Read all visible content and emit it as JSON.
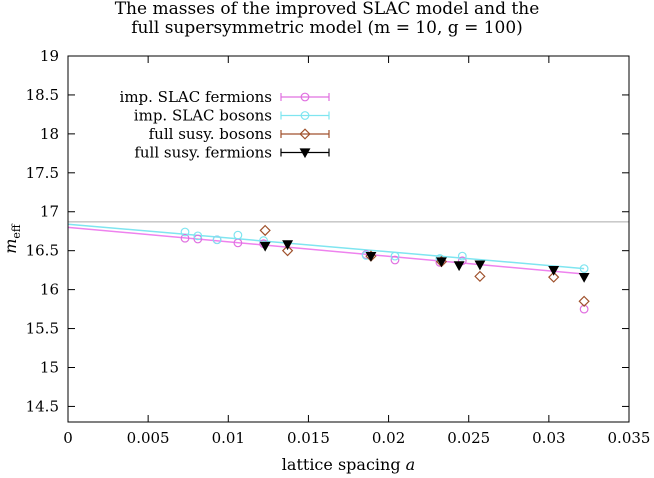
{
  "chart_data": {
    "type": "scatter",
    "title_lines": [
      "The masses of the improved SLAC model and the",
      "full supersymmetric model (m = 10, g = 100)"
    ],
    "xlabel": "lattice spacing a",
    "ylabel": "m_eff",
    "xlim": [
      0,
      0.035
    ],
    "ylim": [
      14.3,
      19.0
    ],
    "xticks": [
      {
        "value": 0,
        "label": "0"
      },
      {
        "value": 0.005,
        "label": "0.005"
      },
      {
        "value": 0.01,
        "label": "0.01"
      },
      {
        "value": 0.015,
        "label": "0.015"
      },
      {
        "value": 0.02,
        "label": "0.02"
      },
      {
        "value": 0.025,
        "label": "0.025"
      },
      {
        "value": 0.03,
        "label": "0.03"
      },
      {
        "value": 0.035,
        "label": "0.035"
      }
    ],
    "yticks": [
      {
        "value": 14.5,
        "label": "14.5"
      },
      {
        "value": 15,
        "label": "15"
      },
      {
        "value": 15.5,
        "label": "15.5"
      },
      {
        "value": 16,
        "label": "16"
      },
      {
        "value": 16.5,
        "label": "16.5"
      },
      {
        "value": 17,
        "label": "17"
      },
      {
        "value": 17.5,
        "label": "17.5"
      },
      {
        "value": 18,
        "label": "18"
      },
      {
        "value": 18.5,
        "label": "18.5"
      },
      {
        "value": 19,
        "label": "19"
      }
    ],
    "grid": false,
    "legend_position": "top-left",
    "reference_line": {
      "y": 16.87,
      "color": "#aaaaaa"
    },
    "fit_lines": [
      {
        "series": "imp. SLAC fermions",
        "x": [
          0,
          0.0322
        ],
        "y": [
          16.8,
          16.2
        ],
        "color": "#ee82ee"
      },
      {
        "series": "imp. SLAC bosons",
        "x": [
          0,
          0.0322
        ],
        "y": [
          16.84,
          16.27
        ],
        "color": "#7fe5f0"
      }
    ],
    "series": [
      {
        "name": "imp. SLAC fermions",
        "marker": "circle",
        "color": "#e070e0",
        "points": [
          {
            "x": 0.0073,
            "y": 16.66,
            "err": 0.02
          },
          {
            "x": 0.0081,
            "y": 16.65,
            "err": 0.02
          },
          {
            "x": 0.0093,
            "y": 16.64,
            "err": 0.02
          },
          {
            "x": 0.0106,
            "y": 16.6,
            "err": 0.02
          },
          {
            "x": 0.0122,
            "y": 16.59,
            "err": 0.03
          },
          {
            "x": 0.0186,
            "y": 16.45,
            "err": 0.03
          },
          {
            "x": 0.0204,
            "y": 16.38,
            "err": 0.03
          },
          {
            "x": 0.0232,
            "y": 16.35,
            "err": 0.03
          },
          {
            "x": 0.0246,
            "y": 16.37,
            "err": 0.03
          },
          {
            "x": 0.0322,
            "y": 15.75,
            "err": 0.04
          }
        ]
      },
      {
        "name": "imp. SLAC bosons",
        "marker": "circle",
        "color": "#7fe5f0",
        "points": [
          {
            "x": 0.0073,
            "y": 16.74,
            "err": 0.02
          },
          {
            "x": 0.0081,
            "y": 16.69,
            "err": 0.02
          },
          {
            "x": 0.0093,
            "y": 16.64,
            "err": 0.02
          },
          {
            "x": 0.0106,
            "y": 16.7,
            "err": 0.02
          },
          {
            "x": 0.0122,
            "y": 16.63,
            "err": 0.02
          },
          {
            "x": 0.0186,
            "y": 16.44,
            "err": 0.02
          },
          {
            "x": 0.0204,
            "y": 16.43,
            "err": 0.02
          },
          {
            "x": 0.0232,
            "y": 16.4,
            "err": 0.02
          },
          {
            "x": 0.0246,
            "y": 16.43,
            "err": 0.02
          },
          {
            "x": 0.0322,
            "y": 16.27,
            "err": 0.02
          }
        ]
      },
      {
        "name": "full susy. bosons",
        "marker": "diamond",
        "color": "#a0522d",
        "points": [
          {
            "x": 0.0123,
            "y": 16.76,
            "err": 0.23
          },
          {
            "x": 0.0137,
            "y": 16.5,
            "err": 0.38
          },
          {
            "x": 0.0189,
            "y": 16.43,
            "err": 0.32
          },
          {
            "x": 0.0233,
            "y": 16.36,
            "err": 0.24
          },
          {
            "x": 0.0257,
            "y": 16.17,
            "err": 0.32
          },
          {
            "x": 0.0303,
            "y": 16.16,
            "err": 0.3
          },
          {
            "x": 0.0322,
            "y": 15.85,
            "err": 0.5
          }
        ]
      },
      {
        "name": "full susy. fermions",
        "marker": "triangle-down",
        "color": "#000000",
        "points": [
          {
            "x": 0.0123,
            "y": 16.56,
            "err": 0.04
          },
          {
            "x": 0.0137,
            "y": 16.58,
            "err": 0.04
          },
          {
            "x": 0.0189,
            "y": 16.43,
            "err": 0.03
          },
          {
            "x": 0.0233,
            "y": 16.36,
            "err": 0.04
          },
          {
            "x": 0.0244,
            "y": 16.31,
            "err": 0.04
          },
          {
            "x": 0.0257,
            "y": 16.32,
            "err": 0.04
          },
          {
            "x": 0.0303,
            "y": 16.25,
            "err": 0.05
          },
          {
            "x": 0.0322,
            "y": 16.16,
            "err": 0.1
          }
        ]
      }
    ]
  }
}
